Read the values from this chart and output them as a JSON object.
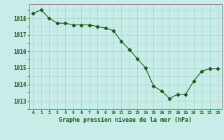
{
  "x": [
    0,
    1,
    2,
    3,
    4,
    5,
    6,
    7,
    8,
    9,
    10,
    11,
    12,
    13,
    14,
    15,
    16,
    17,
    18,
    19,
    20,
    21,
    22,
    23
  ],
  "y": [
    1018.3,
    1018.5,
    1018.0,
    1017.7,
    1017.7,
    1017.6,
    1017.6,
    1017.6,
    1017.5,
    1017.4,
    1017.25,
    1016.6,
    1016.1,
    1015.55,
    1015.0,
    1013.9,
    1013.6,
    1013.15,
    1013.4,
    1013.4,
    1014.2,
    1014.8,
    1014.95,
    1014.95
  ],
  "line_color": "#1a5c1a",
  "marker": "D",
  "marker_size": 2.2,
  "background_color": "#c8ece8",
  "grid_color": "#aad8d0",
  "xlabel": "Graphe pression niveau de la mer (hPa)",
  "xlabel_color": "#1a5c1a",
  "tick_color": "#1a5c1a",
  "spine_color": "#888888",
  "ylabel_ticks": [
    1013,
    1014,
    1015,
    1016,
    1017,
    1018
  ],
  "xlim": [
    -0.5,
    23.5
  ],
  "ylim": [
    1012.5,
    1018.85
  ],
  "xtick_labels": [
    "0",
    "1",
    "2",
    "3",
    "4",
    "5",
    "6",
    "7",
    "8",
    "9",
    "10",
    "11",
    "12",
    "13",
    "14",
    "15",
    "16",
    "17",
    "18",
    "19",
    "20",
    "21",
    "22",
    "23"
  ]
}
